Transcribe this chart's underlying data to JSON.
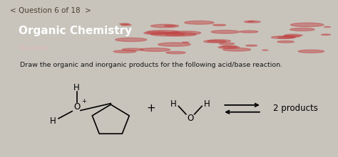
{
  "nav_text": "< Question 6 of 18  >",
  "header_title": "Organic Chemistry",
  "header_subtitle": "Maxwell",
  "header_bg_color": "#6b0f0f",
  "nav_bg_color": "#c8c4bc",
  "content_bg_color": "#d4cfc8",
  "white_content_bg": "#e8e5e0",
  "instruction": "Draw the organic and inorganic products for the following acid/base reaction.",
  "products_text": "2 products",
  "text_color": "#1a1a1a",
  "nav_color": "#4a4030"
}
